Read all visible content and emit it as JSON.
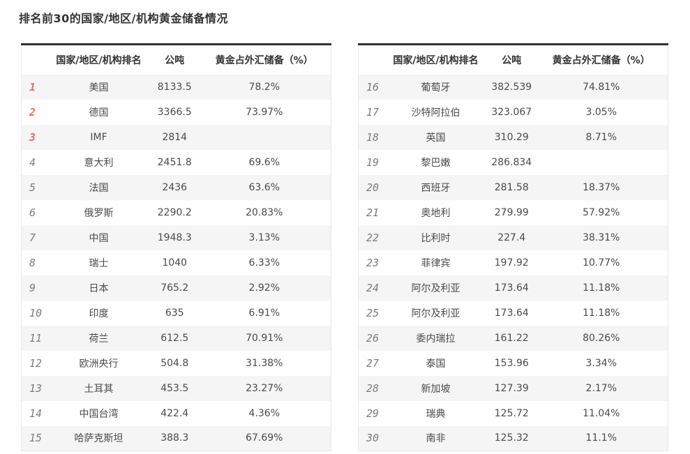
{
  "page_title": "排名前30的国家/地区/机构黄金储备情况",
  "columns": {
    "rank": "",
    "country": "国家/地区/机构排名",
    "tonnes": "公吨",
    "percent": "黄金占外汇储备（%）"
  },
  "colors": {
    "rank_top3": "#ee6a6a",
    "rank_default": "#7d7d7d",
    "table_top_border": "#333333",
    "row_stripe": "#f5f5f5",
    "text": "#4a4a4a"
  },
  "tables": [
    {
      "rows": [
        {
          "rank": "1",
          "name": "美国",
          "tonnes": "8133.5",
          "percent": "78.2%"
        },
        {
          "rank": "2",
          "name": "德国",
          "tonnes": "3366.5",
          "percent": "73.97%"
        },
        {
          "rank": "3",
          "name": "IMF",
          "tonnes": "2814",
          "percent": ""
        },
        {
          "rank": "4",
          "name": "意大利",
          "tonnes": "2451.8",
          "percent": "69.6%"
        },
        {
          "rank": "5",
          "name": "法国",
          "tonnes": "2436",
          "percent": "63.6%"
        },
        {
          "rank": "6",
          "name": "俄罗斯",
          "tonnes": "2290.2",
          "percent": "20.83%"
        },
        {
          "rank": "7",
          "name": "中国",
          "tonnes": "1948.3",
          "percent": "3.13%"
        },
        {
          "rank": "8",
          "name": "瑞士",
          "tonnes": "1040",
          "percent": "6.33%"
        },
        {
          "rank": "9",
          "name": "日本",
          "tonnes": "765.2",
          "percent": "2.92%"
        },
        {
          "rank": "10",
          "name": "印度",
          "tonnes": "635",
          "percent": "6.91%"
        },
        {
          "rank": "11",
          "name": "荷兰",
          "tonnes": "612.5",
          "percent": "70.91%"
        },
        {
          "rank": "12",
          "name": "欧洲央行",
          "tonnes": "504.8",
          "percent": "31.38%"
        },
        {
          "rank": "13",
          "name": "土耳其",
          "tonnes": "453.5",
          "percent": "23.27%"
        },
        {
          "rank": "14",
          "name": "中国台湾",
          "tonnes": "422.4",
          "percent": "4.36%"
        },
        {
          "rank": "15",
          "name": "哈萨克斯坦",
          "tonnes": "388.3",
          "percent": "67.69%"
        }
      ]
    },
    {
      "rows": [
        {
          "rank": "16",
          "name": "葡萄牙",
          "tonnes": "382.539",
          "percent": "74.81%"
        },
        {
          "rank": "17",
          "name": "沙特阿拉伯",
          "tonnes": "323.067",
          "percent": "3.05%"
        },
        {
          "rank": "18",
          "name": "英国",
          "tonnes": "310.29",
          "percent": "8.71%"
        },
        {
          "rank": "19",
          "name": "黎巴嫩",
          "tonnes": "286.834",
          "percent": ""
        },
        {
          "rank": "20",
          "name": "西班牙",
          "tonnes": "281.58",
          "percent": "18.37%"
        },
        {
          "rank": "21",
          "name": "奥地利",
          "tonnes": "279.99",
          "percent": "57.92%"
        },
        {
          "rank": "22",
          "name": "比利时",
          "tonnes": "227.4",
          "percent": "38.31%"
        },
        {
          "rank": "23",
          "name": "菲律宾",
          "tonnes": "197.92",
          "percent": "10.77%"
        },
        {
          "rank": "24",
          "name": "阿尔及利亚",
          "tonnes": "173.64",
          "percent": "11.18%"
        },
        {
          "rank": "25",
          "name": "阿尔及利亚",
          "tonnes": "173.64",
          "percent": "11.18%"
        },
        {
          "rank": "26",
          "name": "委内瑞拉",
          "tonnes": "161.22",
          "percent": "80.26%"
        },
        {
          "rank": "27",
          "name": "泰国",
          "tonnes": "153.96",
          "percent": "3.34%"
        },
        {
          "rank": "28",
          "name": "新加坡",
          "tonnes": "127.39",
          "percent": "2.17%"
        },
        {
          "rank": "29",
          "name": "瑞典",
          "tonnes": "125.72",
          "percent": "11.04%"
        },
        {
          "rank": "30",
          "name": "南非",
          "tonnes": "125.32",
          "percent": "11.1%"
        }
      ]
    }
  ],
  "chart_data": {
    "type": "table",
    "title": "排名前30的国家/地区/机构黄金储备情况",
    "columns": [
      "排名",
      "国家/地区/机构排名",
      "公吨",
      "黄金占外汇储备（%）"
    ],
    "layout": "two side-by-side panels: ranks 1-15 in left table, ranks 16-30 in right table; top-3 ranks highlighted in red; zebra striping on odd rows",
    "rows": [
      [
        1,
        "美国",
        8133.5,
        "78.2%"
      ],
      [
        2,
        "德国",
        3366.5,
        "73.97%"
      ],
      [
        3,
        "IMF",
        2814,
        ""
      ],
      [
        4,
        "意大利",
        2451.8,
        "69.6%"
      ],
      [
        5,
        "法国",
        2436,
        "63.6%"
      ],
      [
        6,
        "俄罗斯",
        2290.2,
        "20.83%"
      ],
      [
        7,
        "中国",
        1948.3,
        "3.13%"
      ],
      [
        8,
        "瑞士",
        1040,
        "6.33%"
      ],
      [
        9,
        "日本",
        765.2,
        "2.92%"
      ],
      [
        10,
        "印度",
        635,
        "6.91%"
      ],
      [
        11,
        "荷兰",
        612.5,
        "70.91%"
      ],
      [
        12,
        "欧洲央行",
        504.8,
        "31.38%"
      ],
      [
        13,
        "土耳其",
        453.5,
        "23.27%"
      ],
      [
        14,
        "中国台湾",
        422.4,
        "4.36%"
      ],
      [
        15,
        "哈萨克斯坦",
        388.3,
        "67.69%"
      ],
      [
        16,
        "葡萄牙",
        382.539,
        "74.81%"
      ],
      [
        17,
        "沙特阿拉伯",
        323.067,
        "3.05%"
      ],
      [
        18,
        "英国",
        310.29,
        "8.71%"
      ],
      [
        19,
        "黎巴嫩",
        286.834,
        ""
      ],
      [
        20,
        "西班牙",
        281.58,
        "18.37%"
      ],
      [
        21,
        "奥地利",
        279.99,
        "57.92%"
      ],
      [
        22,
        "比利时",
        227.4,
        "38.31%"
      ],
      [
        23,
        "菲律宾",
        197.92,
        "10.77%"
      ],
      [
        24,
        "阿尔及利亚",
        173.64,
        "11.18%"
      ],
      [
        25,
        "阿尔及利亚",
        173.64,
        "11.18%"
      ],
      [
        26,
        "委内瑞拉",
        161.22,
        "80.26%"
      ],
      [
        27,
        "泰国",
        153.96,
        "3.34%"
      ],
      [
        28,
        "新加坡",
        127.39,
        "2.17%"
      ],
      [
        29,
        "瑞典",
        125.72,
        "11.04%"
      ],
      [
        30,
        "南非",
        125.32,
        "11.1%"
      ]
    ]
  }
}
